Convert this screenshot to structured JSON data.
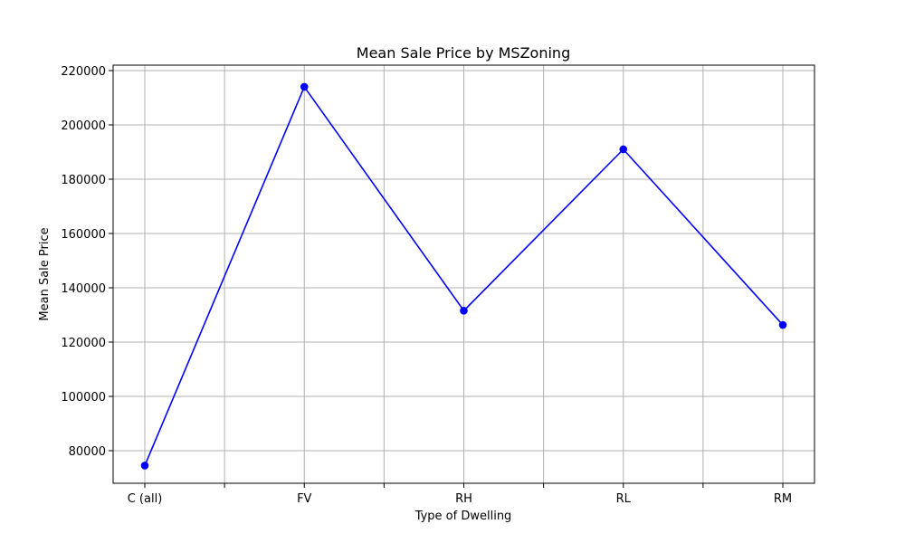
{
  "chart_data": {
    "type": "line",
    "title": "Mean Sale Price by MSZoning",
    "xlabel": "Type of Dwelling",
    "ylabel": "Mean Sale Price",
    "categories": [
      "C (all)",
      "FV",
      "RH",
      "RL",
      "RM"
    ],
    "series": [
      {
        "values": [
          74528,
          214014,
          131558,
          191005,
          126317
        ],
        "color": "#0000ff",
        "marker": "circle"
      }
    ],
    "ylim": [
      68000,
      222000
    ],
    "yticks": [
      80000,
      100000,
      120000,
      140000,
      160000,
      180000,
      200000,
      220000
    ],
    "ytick_labels": [
      "80000",
      "100000",
      "120000",
      "140000",
      "160000",
      "180000",
      "200000",
      "220000"
    ],
    "grid": true,
    "legend": "none"
  },
  "colors": {
    "line": "#0000ff",
    "grid": "#b0b0b0",
    "frame": "#000000",
    "background": "#ffffff"
  }
}
